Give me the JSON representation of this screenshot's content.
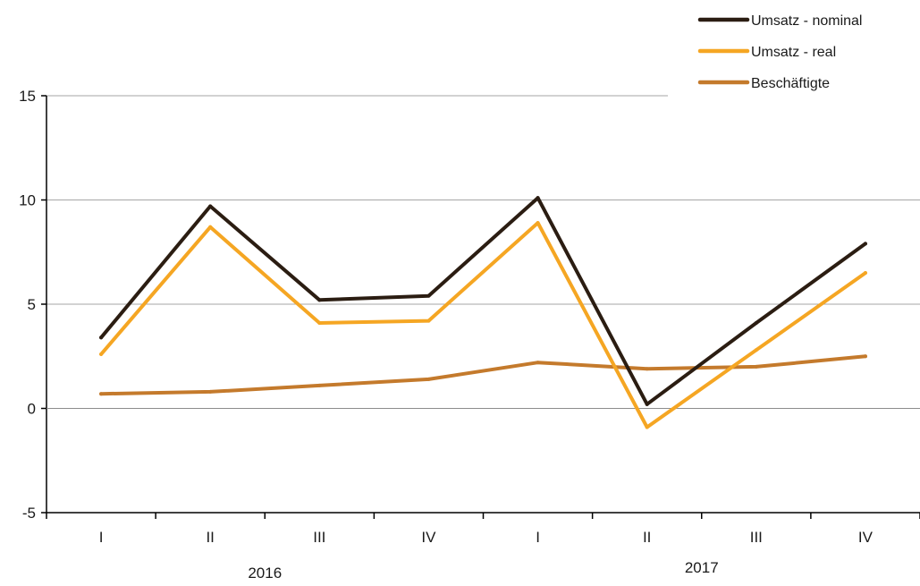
{
  "chart_data": {
    "type": "line",
    "title": "",
    "xlabel": "",
    "ylabel": "",
    "ylim": [
      -5,
      15
    ],
    "yticks": [
      -5,
      0,
      5,
      10,
      15
    ],
    "grid": true,
    "legend_position": "top-right",
    "categories": [
      "I",
      "II",
      "III",
      "IV",
      "I",
      "II",
      "III",
      "IV"
    ],
    "groups": [
      {
        "label": "2016",
        "span": [
          0,
          3
        ]
      },
      {
        "label": "2017",
        "span": [
          4,
          7
        ]
      }
    ],
    "series": [
      {
        "name": "Umsatz - nominal",
        "color": "#2b1d12",
        "values": [
          3.4,
          9.7,
          5.2,
          5.4,
          10.1,
          0.2,
          4.1,
          7.9
        ]
      },
      {
        "name": "Umsatz - real",
        "color": "#f5a623",
        "values": [
          2.6,
          8.7,
          4.1,
          4.2,
          8.9,
          -0.9,
          2.8,
          6.5
        ]
      },
      {
        "name": "Beschäftigte",
        "color": "#c47a2c",
        "values": [
          0.7,
          0.8,
          1.1,
          1.4,
          2.2,
          1.9,
          2.0,
          2.5
        ]
      }
    ]
  }
}
